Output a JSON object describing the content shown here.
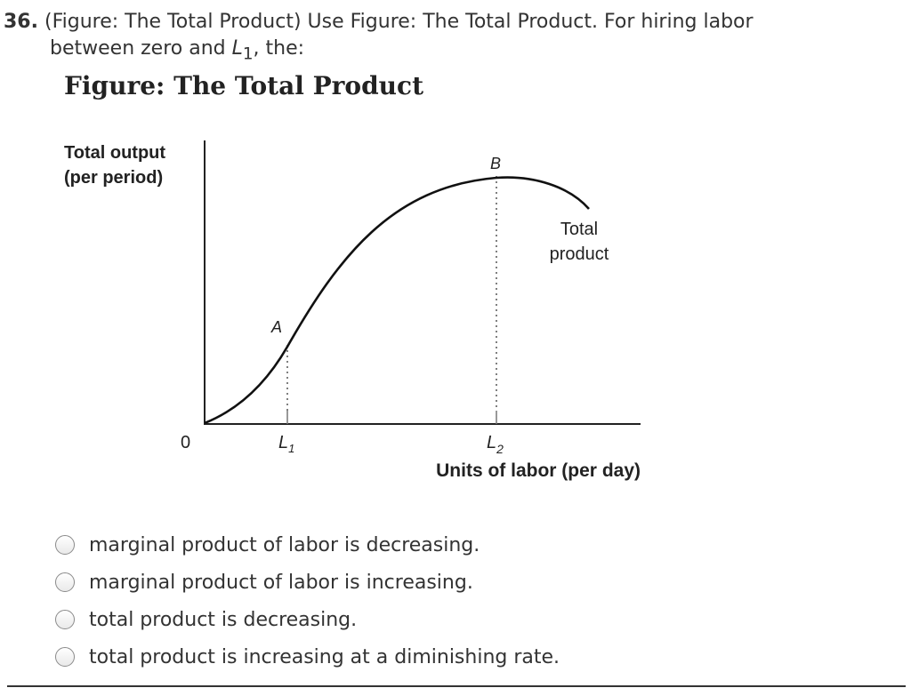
{
  "question": {
    "number": "36.",
    "text_line1": "(Figure: The Total Product) Use Figure: The Total Product. For hiring labor",
    "text_line2_pre": "between zero and ",
    "text_line2_var": "L",
    "text_line2_sub": "1",
    "text_line2_post": ", the:"
  },
  "figure": {
    "title": "Figure: The Total Product",
    "y_label_line1": "Total output",
    "y_label_line2": "(per period)",
    "x_label": "Units of labor (per day)",
    "origin_label": "0",
    "tick_l1_letter": "L",
    "tick_l1_sub": "1",
    "tick_l2_letter": "L",
    "tick_l2_sub": "2",
    "point_a": "A",
    "point_b": "B",
    "curve_label_line1": "Total",
    "curve_label_line2": "product"
  },
  "options": [
    {
      "label": "marginal product of labor is decreasing."
    },
    {
      "label": "marginal product of labor is increasing."
    },
    {
      "label": "total product is decreasing."
    },
    {
      "label": "total product is increasing at a diminishing rate."
    }
  ],
  "colors": {
    "curve": "#111111",
    "axis": "#222222",
    "dotted": "#555555"
  }
}
